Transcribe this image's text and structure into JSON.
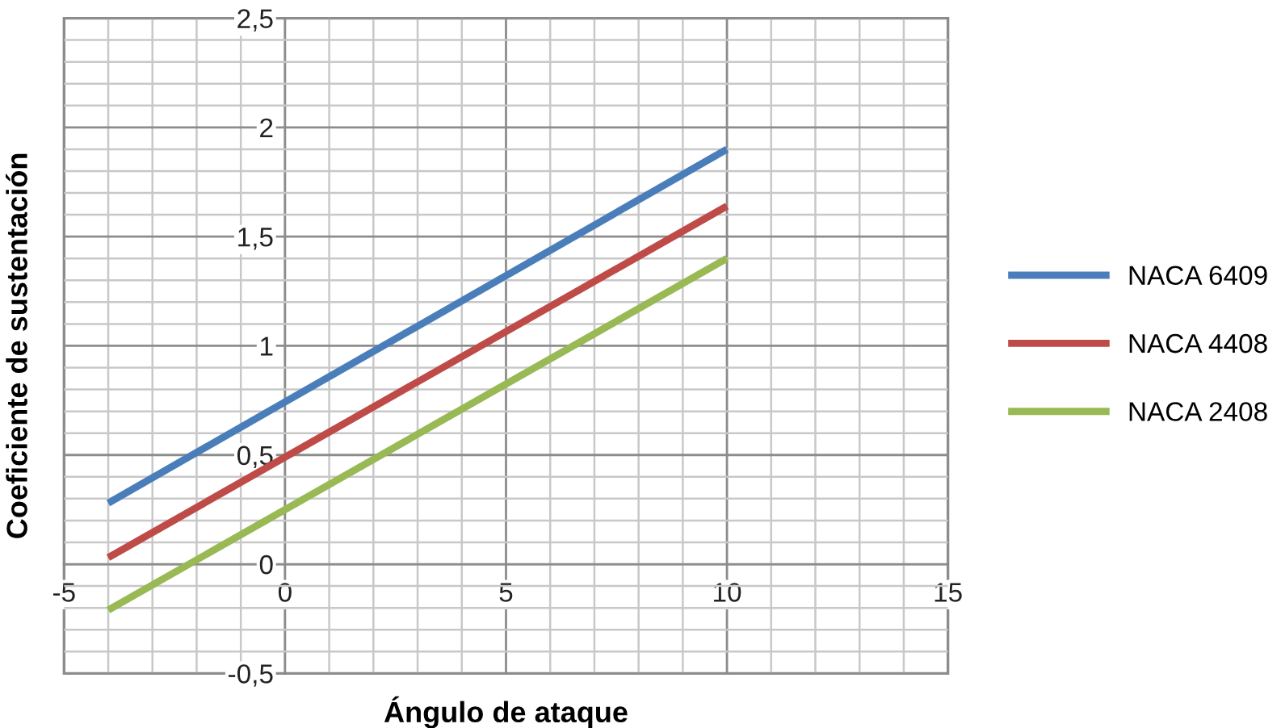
{
  "chart_data": {
    "type": "line",
    "xlabel": "Ángulo de ataque",
    "ylabel": "Coeficiente de sustentación",
    "xlim": [
      -5,
      15
    ],
    "xticks": [
      -5,
      0,
      5,
      10,
      15
    ],
    "ylim": [
      -0.5,
      2.5
    ],
    "yticks": [
      {
        "value": -0.5,
        "label": "-0,5"
      },
      0,
      {
        "value": 0.5,
        "label": "0,5"
      },
      1,
      {
        "value": 1.5,
        "label": "1,5"
      },
      2,
      {
        "value": 2.5,
        "label": "2,5"
      }
    ],
    "x": [
      -4,
      10
    ],
    "grid": true,
    "legend": "right",
    "marker": "none",
    "line_style": "solid",
    "series": [
      {
        "name": "NACA 6409",
        "color": "#4a7ebb",
        "values": [
          0.28,
          1.9
        ]
      },
      {
        "name": "NACA 4408",
        "color": "#be4b48",
        "values": [
          0.03,
          1.64
        ]
      },
      {
        "name": "NACA 2408",
        "color": "#98b954",
        "values": [
          -0.21,
          1.4
        ]
      }
    ]
  }
}
